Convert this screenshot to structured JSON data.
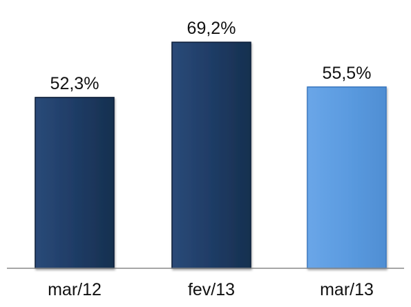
{
  "chart_data": {
    "type": "bar",
    "categories": [
      "mar/12",
      "fev/13",
      "mar/13"
    ],
    "values": [
      52.3,
      69.2,
      55.5
    ],
    "value_labels": [
      "52,3%",
      "69,2%",
      "55,5%"
    ],
    "colors": [
      "#1f3c66",
      "#1f3c66",
      "#5b9be0"
    ],
    "ylim": [
      0,
      80
    ],
    "grid": false,
    "legend": "none",
    "title": "",
    "xlabel": "",
    "ylabel": ""
  },
  "colors": {
    "axis": "#888888",
    "label_text": "#111111",
    "bar_border": "#0d1f38",
    "highlight_border": "#3a78c0"
  }
}
